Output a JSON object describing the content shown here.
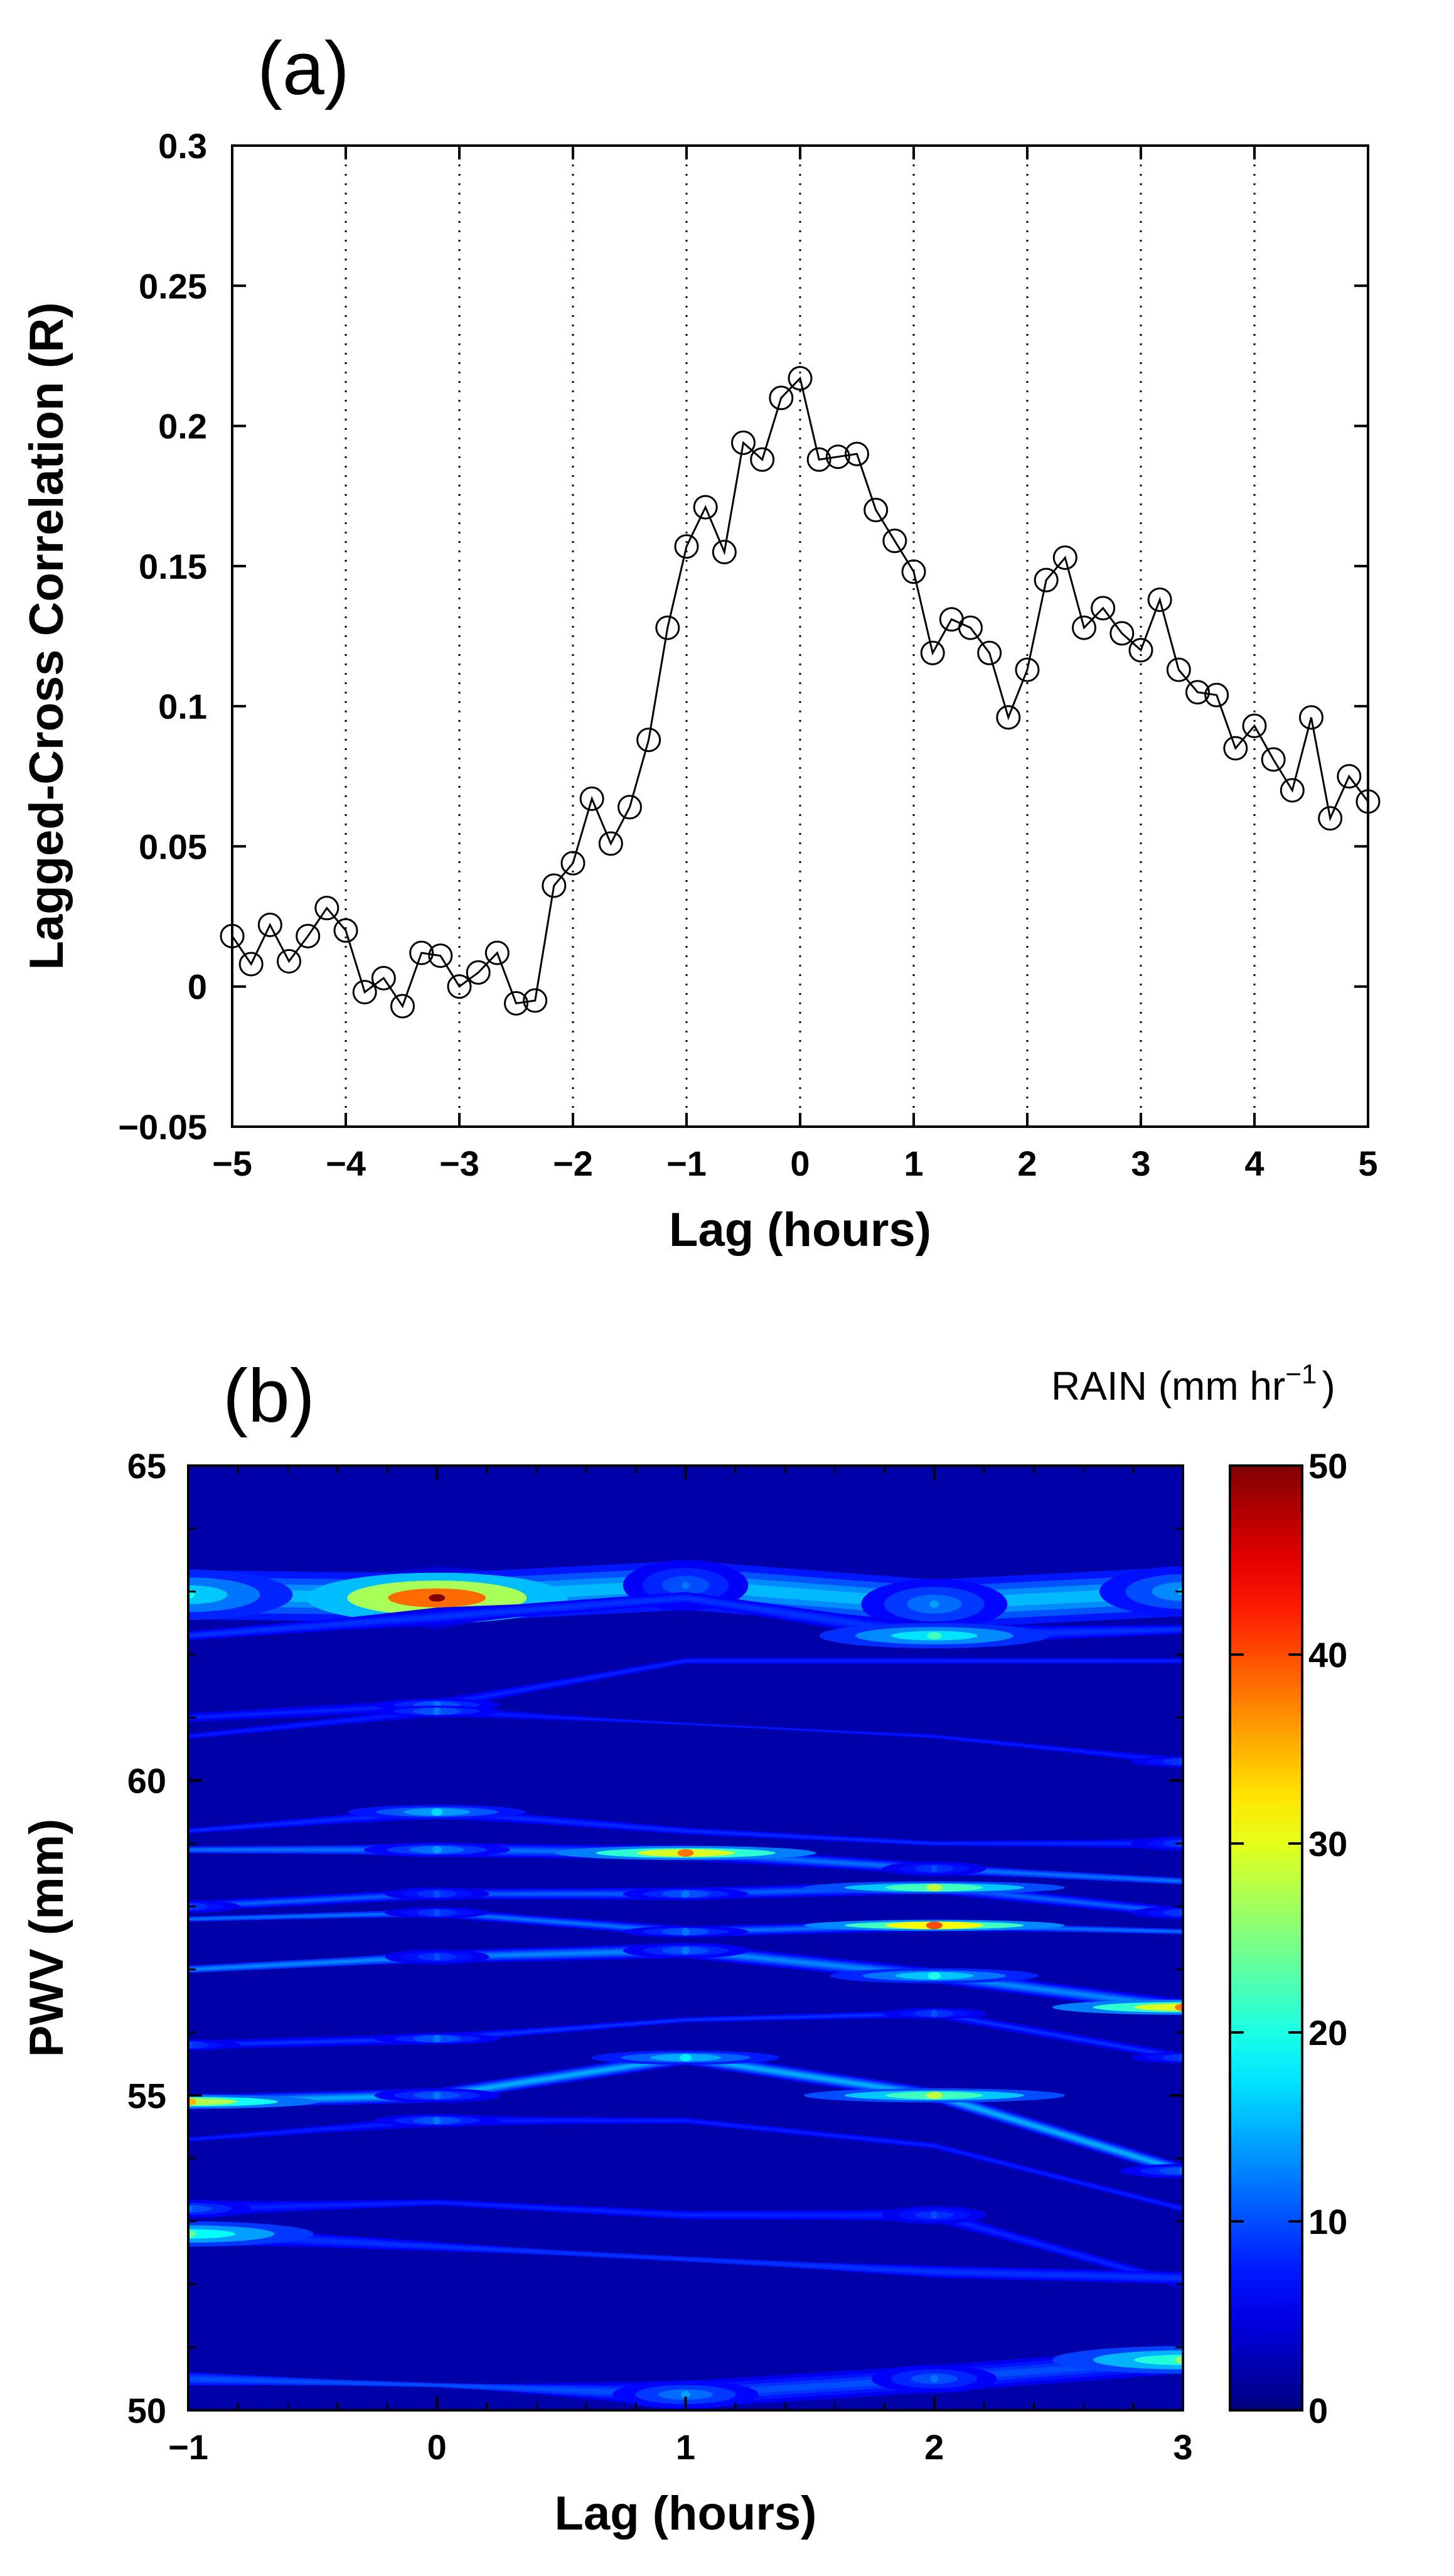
{
  "figure": {
    "panels": [
      {
        "id": "a",
        "label": "(a)"
      },
      {
        "id": "b",
        "label": "(b)"
      }
    ]
  },
  "chart_data": [
    {
      "panel": "(a)",
      "type": "line",
      "title": "",
      "xlabel": "Lag (hours)",
      "ylabel": "Lagged-Cross Correlation (R)",
      "xlim": [
        -5,
        5
      ],
      "ylim": [
        -0.05,
        0.3
      ],
      "xticks": [
        -5,
        -4,
        -3,
        -2,
        -1,
        0,
        1,
        2,
        3,
        4,
        5
      ],
      "xtick_labels": [
        "−5",
        "−4",
        "−3",
        "−2",
        "−1",
        "0",
        "1",
        "2",
        "3",
        "4",
        "5"
      ],
      "yticks": [
        -0.05,
        0,
        0.05,
        0.1,
        0.15,
        0.2,
        0.25,
        0.3
      ],
      "ytick_labels": [
        "−0.05",
        "0",
        "0.05",
        "0.1",
        "0.15",
        "0.2",
        "0.25",
        "0.3"
      ],
      "grid": "dotted vertical lines at x ticks",
      "marker": "open circle",
      "line_color": "#000000",
      "x": [
        -5.0,
        -4.8333,
        -4.6667,
        -4.5,
        -4.3333,
        -4.1667,
        -4.0,
        -3.8333,
        -3.6667,
        -3.5,
        -3.3333,
        -3.1667,
        -3.0,
        -2.8333,
        -2.6667,
        -2.5,
        -2.3333,
        -2.1667,
        -2.0,
        -1.8333,
        -1.6667,
        -1.5,
        -1.3333,
        -1.1667,
        -1.0,
        -0.8333,
        -0.6667,
        -0.5,
        -0.3333,
        -0.1667,
        0.0,
        0.1667,
        0.3333,
        0.5,
        0.6667,
        0.8333,
        1.0,
        1.1667,
        1.3333,
        1.5,
        1.6667,
        1.8333,
        2.0,
        2.1667,
        2.3333,
        2.5,
        2.6667,
        2.8333,
        3.0,
        3.1667,
        3.3333,
        3.5,
        3.6667,
        3.8333,
        4.0,
        4.1667,
        4.3333,
        4.5,
        4.6667,
        4.8333,
        5.0
      ],
      "y": [
        0.018,
        0.008,
        0.022,
        0.009,
        0.018,
        0.028,
        0.02,
        -0.002,
        0.003,
        -0.007,
        0.012,
        0.011,
        0.0,
        0.005,
        0.012,
        -0.006,
        -0.005,
        0.036,
        0.044,
        0.067,
        0.051,
        0.064,
        0.088,
        0.128,
        0.157,
        0.171,
        0.155,
        0.194,
        0.188,
        0.21,
        0.217,
        0.188,
        0.189,
        0.19,
        0.17,
        0.159,
        0.148,
        0.119,
        0.131,
        0.128,
        0.119,
        0.096,
        0.113,
        0.145,
        0.153,
        0.128,
        0.135,
        0.126,
        0.12,
        0.138,
        0.113,
        0.105,
        0.104,
        0.085,
        0.093,
        0.081,
        0.07,
        0.096,
        0.06,
        0.075,
        0.066
      ]
    },
    {
      "panel": "(b)",
      "type": "heatmap",
      "subtype": "filled contour",
      "title": "",
      "xlabel": "Lag (hours)",
      "ylabel": "PWV (mm)",
      "xlim": [
        -1,
        3
      ],
      "ylim": [
        50,
        65
      ],
      "xticks": [
        -1,
        0,
        1,
        2,
        3
      ],
      "xtick_labels": [
        "−1",
        "0",
        "1",
        "2",
        "3"
      ],
      "yticks": [
        50,
        55,
        60,
        65
      ],
      "ytick_labels": [
        "50",
        "55",
        "60",
        "65"
      ],
      "colorbar": {
        "title": "RAIN (mm hr",
        "title_exponent": "−1",
        "title_close": ")",
        "range": [
          0,
          50
        ],
        "ticks": [
          0,
          10,
          20,
          30,
          40,
          50
        ],
        "tick_labels": [
          "0",
          "10",
          "20",
          "30",
          "40",
          "50"
        ],
        "colormap": "jet"
      },
      "background_value": 2,
      "features": [
        {
          "x": [
            -1,
            0,
            1,
            2,
            3
          ],
          "y": [
            62.95,
            62.9,
            63.1,
            62.8,
            63.0
          ],
          "v": [
            20,
            50,
            12,
            14,
            16
          ],
          "w": 1.0
        },
        {
          "x": [
            -1,
            0,
            1,
            2,
            3
          ],
          "y": [
            62.3,
            62.6,
            62.9,
            62.3,
            62.4
          ],
          "v": [
            6,
            9,
            8,
            22,
            6
          ],
          "w": 0.5
        },
        {
          "x": [
            -1,
            0,
            1,
            2,
            3
          ],
          "y": [
            61.0,
            61.2,
            61.9,
            61.9,
            61.9
          ],
          "v": [
            9,
            12,
            8,
            8,
            7
          ],
          "w": 0.25
        },
        {
          "x": [
            -1,
            0,
            1,
            2,
            3
          ],
          "y": [
            60.7,
            61.1,
            60.9,
            60.7,
            60.3
          ],
          "v": [
            8,
            12,
            5,
            6,
            10
          ],
          "w": 0.22
        },
        {
          "x": [
            -1,
            0,
            1,
            2,
            3
          ],
          "y": [
            59.2,
            59.5,
            59.2,
            59.0,
            59.0
          ],
          "v": [
            6,
            17,
            8,
            6,
            10
          ],
          "w": 0.28
        },
        {
          "x": [
            -1,
            0,
            1,
            2,
            3
          ],
          "y": [
            58.9,
            58.9,
            58.85,
            58.6,
            58.4
          ],
          "v": [
            8,
            14,
            38,
            10,
            8
          ],
          "w": 0.28
        },
        {
          "x": [
            -1,
            0,
            1,
            2,
            3
          ],
          "y": [
            58.0,
            58.2,
            58.2,
            58.3,
            57.9
          ],
          "v": [
            10,
            10,
            12,
            28,
            10
          ],
          "w": 0.25
        },
        {
          "x": [
            -1,
            0,
            1,
            2,
            3
          ],
          "y": [
            57.8,
            57.9,
            57.6,
            57.7,
            57.6
          ],
          "v": [
            8,
            10,
            12,
            40,
            8
          ],
          "w": 0.22
        },
        {
          "x": [
            -1,
            0,
            1,
            2,
            3
          ],
          "y": [
            57.0,
            57.2,
            57.3,
            56.9,
            56.4
          ],
          "v": [
            8,
            10,
            12,
            20,
            38
          ],
          "w": 0.3
        },
        {
          "x": [
            -1,
            0,
            1,
            2,
            3
          ],
          "y": [
            55.8,
            55.9,
            56.2,
            56.3,
            55.6
          ],
          "v": [
            10,
            12,
            8,
            10,
            10
          ],
          "w": 0.22
        },
        {
          "x": [
            -1,
            0,
            1,
            2,
            3
          ],
          "y": [
            54.9,
            55.0,
            55.6,
            55.0,
            53.8
          ],
          "v": [
            35,
            12,
            18,
            28,
            12
          ],
          "w": 0.28
        },
        {
          "x": [
            -1,
            0,
            1,
            2,
            3
          ],
          "y": [
            54.3,
            54.6,
            54.6,
            54.2,
            53.2
          ],
          "v": [
            6,
            12,
            8,
            8,
            8
          ],
          "w": 0.25
        },
        {
          "x": [
            -1,
            0,
            1,
            2,
            3
          ],
          "y": [
            53.2,
            53.3,
            53.1,
            53.1,
            52.0
          ],
          "v": [
            12,
            6,
            8,
            10,
            8
          ],
          "w": 0.35
        },
        {
          "x": [
            -1,
            0,
            1,
            2,
            3
          ],
          "y": [
            52.8,
            52.6,
            52.4,
            52.2,
            52.1
          ],
          "v": [
            24,
            6,
            5,
            8,
            8
          ],
          "w": 0.5
        },
        {
          "x": [
            -1,
            0,
            1,
            2,
            3
          ],
          "y": [
            50.5,
            50.4,
            50.25,
            50.5,
            50.8
          ],
          "v": [
            8,
            4,
            14,
            12,
            26
          ],
          "w": 0.55
        }
      ]
    }
  ]
}
